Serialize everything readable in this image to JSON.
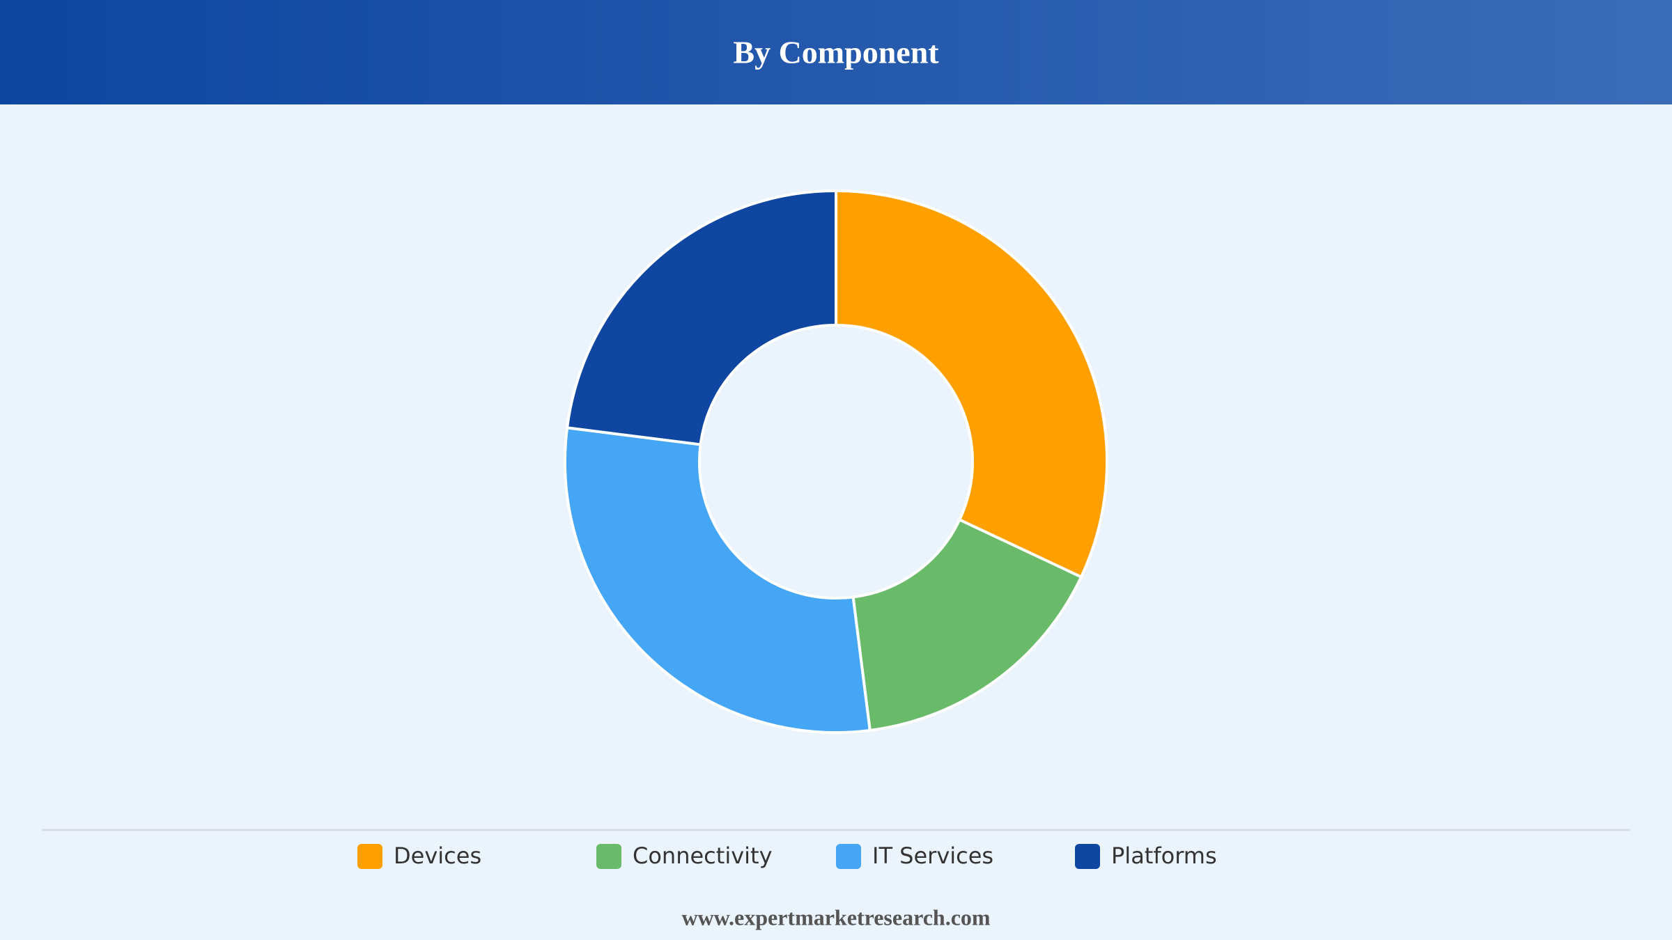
{
  "chart_data": {
    "type": "donut",
    "title": "By Component",
    "categories": [
      "Devices",
      "Connectivity",
      "IT Services",
      "Platforms"
    ],
    "values": [
      32,
      16,
      29,
      23
    ],
    "colors": [
      "#ffa000",
      "#69bb6a",
      "#44a6f5",
      "#0e46a1"
    ]
  },
  "footer": "www.expertmarketresearch.com"
}
